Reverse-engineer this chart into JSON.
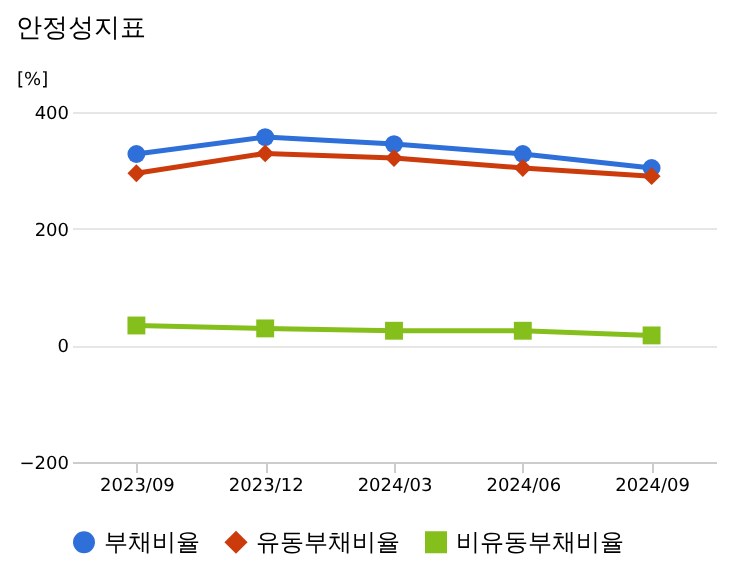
{
  "chart_data": {
    "type": "line",
    "title": "안정성지표",
    "ylabel": "[%]",
    "categories": [
      "2023/09",
      "2023/12",
      "2024/03",
      "2024/06",
      "2024/09"
    ],
    "series": [
      {
        "name": "부채비율",
        "color": "#2e6fd9",
        "marker": "circle",
        "values": [
          328,
          357,
          345,
          328,
          304
        ]
      },
      {
        "name": "유동부채비율",
        "color": "#cc3b0c",
        "marker": "diamond",
        "values": [
          295,
          329,
          321,
          304,
          290
        ]
      },
      {
        "name": "비유동부채비율",
        "color": "#84bf1c",
        "marker": "square",
        "values": [
          34,
          29,
          25,
          25,
          17
        ]
      }
    ],
    "ylim": [
      -200,
      400
    ],
    "yticks": [
      -200,
      0,
      200,
      400
    ],
    "grid": "y",
    "legend": "bottom",
    "line_style": "solid"
  }
}
